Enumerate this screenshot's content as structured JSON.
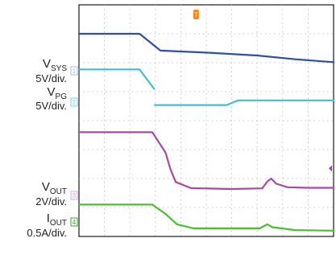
{
  "chart_data": {
    "type": "line",
    "title": "",
    "xlabel": "",
    "ylabel": "",
    "xlim": [
      0,
      10
    ],
    "ylim": [
      0,
      8
    ],
    "grid": true,
    "grid_divisions": {
      "x": 10,
      "y": 8
    },
    "channels": [
      {
        "id": "sys",
        "label_main": "V",
        "label_sub": "SYS",
        "scale": "5V/div.",
        "marker": "1",
        "color": "#2e4fa3",
        "marker_color": "#b0b8e0",
        "points": [
          [
            0,
            7.0
          ],
          [
            2.38,
            7.0
          ],
          [
            3.2,
            6.42
          ],
          [
            5.0,
            6.35
          ],
          [
            7.0,
            6.25
          ],
          [
            8.5,
            6.12
          ],
          [
            10,
            6.02
          ]
        ]
      },
      {
        "id": "pg",
        "label_main": "V",
        "label_sub": "PG",
        "scale": "5V/div.",
        "marker": "2",
        "color": "#3fc0cf",
        "marker_color": "#7fd6e0",
        "segments": [
          [
            [
              0,
              5.77
            ],
            [
              2.38,
              5.77
            ],
            [
              2.95,
              5.1
            ]
          ],
          [
            [
              2.98,
              4.54
            ],
            [
              5.8,
              4.54
            ],
            [
              6.25,
              4.7
            ],
            [
              10,
              4.7
            ]
          ]
        ]
      },
      {
        "id": "out",
        "label_main": "V",
        "label_sub": "OUT",
        "scale": "2V/div.",
        "marker": "3",
        "color": "#a64aa6",
        "marker_color": "#d9a8d9",
        "points": [
          [
            0,
            3.6
          ],
          [
            2.88,
            3.6
          ],
          [
            3.4,
            2.9
          ],
          [
            3.6,
            2.3
          ],
          [
            3.8,
            1.88
          ],
          [
            4.4,
            1.67
          ],
          [
            6.0,
            1.64
          ],
          [
            7.2,
            1.66
          ],
          [
            7.4,
            1.9
          ],
          [
            7.55,
            2.0
          ],
          [
            7.75,
            1.82
          ],
          [
            8.2,
            1.7
          ],
          [
            9.0,
            1.68
          ],
          [
            10,
            1.68
          ]
        ]
      },
      {
        "id": "iout",
        "label_main": "I",
        "label_sub": "OUT",
        "scale": "0.5A/div.",
        "marker": "4",
        "color": "#4cbf2e",
        "marker_color": "#3aa82c",
        "points": [
          [
            0,
            1.1
          ],
          [
            2.88,
            1.1
          ],
          [
            3.4,
            0.78
          ],
          [
            3.85,
            0.42
          ],
          [
            4.5,
            0.28
          ],
          [
            7.1,
            0.28
          ],
          [
            7.4,
            0.42
          ],
          [
            7.6,
            0.32
          ],
          [
            8.5,
            0.22
          ],
          [
            10,
            0.2
          ]
        ]
      }
    ],
    "trigger_marker": {
      "label": "T",
      "x": 4.6,
      "color": "#f08a1c"
    }
  }
}
